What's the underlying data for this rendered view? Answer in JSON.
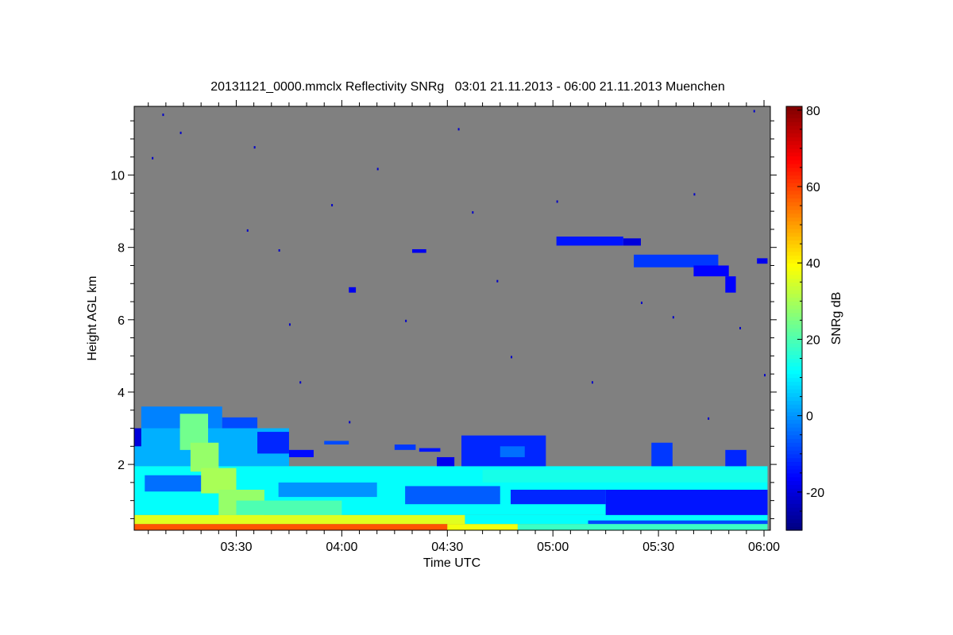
{
  "chart_data": {
    "type": "heatmap",
    "title": "20131121_0000.mmclx Reflectivity SNRg   03:01 21.11.2013 - 06:00 21.11.2013 Muenchen",
    "xlabel": "Time UTC",
    "ylabel": "Height AGL km",
    "colorbar_label": "SNRg dB",
    "x_units": "minutes after 03:00 UTC",
    "xlim": [
      1,
      181.8
    ],
    "x_ticks": [
      {
        "v": 30,
        "label": "03:30"
      },
      {
        "v": 60,
        "label": "04:00"
      },
      {
        "v": 90,
        "label": "04:30"
      },
      {
        "v": 120,
        "label": "05:00"
      },
      {
        "v": 150,
        "label": "05:30"
      },
      {
        "v": 180,
        "label": "06:00"
      }
    ],
    "x_minor_step": 5,
    "ylim": [
      0.18,
      11.9
    ],
    "y_ticks": [
      {
        "v": 2,
        "label": "2"
      },
      {
        "v": 4,
        "label": "4"
      },
      {
        "v": 6,
        "label": "6"
      },
      {
        "v": 8,
        "label": "8"
      },
      {
        "v": 10,
        "label": "10"
      }
    ],
    "y_minor_step": 0.5,
    "clim": [
      -30,
      81
    ],
    "colorbar_ticks": [
      {
        "v": 80,
        "label": "80"
      },
      {
        "v": 60,
        "label": "60"
      },
      {
        "v": 40,
        "label": "40"
      },
      {
        "v": 20,
        "label": "20"
      },
      {
        "v": 0,
        "label": "0"
      },
      {
        "v": -20,
        "label": "-20"
      }
    ],
    "colorbar_minor_step": 5,
    "colormap": "jet",
    "no_signal_color": "#808080",
    "regions": [
      {
        "t": [
          1,
          45
        ],
        "h": [
          1.95,
          3.0
        ],
        "snr": 3
      },
      {
        "t": [
          3,
          26
        ],
        "h": [
          3.0,
          3.6
        ],
        "snr": -2
      },
      {
        "t": [
          26,
          36
        ],
        "h": [
          3.0,
          3.3
        ],
        "snr": -8
      },
      {
        "t": [
          36,
          45
        ],
        "h": [
          2.3,
          2.9
        ],
        "snr": -12
      },
      {
        "t": [
          45,
          52
        ],
        "h": [
          2.2,
          2.4
        ],
        "snr": -15
      },
      {
        "t": [
          1,
          3
        ],
        "h": [
          2.5,
          3.0
        ],
        "snr": -20
      },
      {
        "t": [
          1,
          181
        ],
        "h": [
          0.6,
          1.95
        ],
        "snr": 12
      },
      {
        "t": [
          4,
          24
        ],
        "h": [
          1.25,
          1.7
        ],
        "snr": -4
      },
      {
        "t": [
          42,
          70
        ],
        "h": [
          1.1,
          1.5
        ],
        "snr": 0
      },
      {
        "t": [
          78,
          105
        ],
        "h": [
          0.9,
          1.4
        ],
        "snr": -6
      },
      {
        "t": [
          108,
          135
        ],
        "h": [
          0.9,
          1.3
        ],
        "snr": -12
      },
      {
        "t": [
          135,
          181
        ],
        "h": [
          0.5,
          1.3
        ],
        "snr": -14
      },
      {
        "t": [
          100,
          181
        ],
        "h": [
          1.5,
          1.85
        ],
        "snr": 14
      },
      {
        "t": [
          14,
          22
        ],
        "h": [
          2.4,
          3.4
        ],
        "snr": 24
      },
      {
        "t": [
          17,
          25
        ],
        "h": [
          1.8,
          2.6
        ],
        "snr": 28
      },
      {
        "t": [
          20,
          30
        ],
        "h": [
          1.2,
          1.9
        ],
        "snr": 30
      },
      {
        "t": [
          25,
          38
        ],
        "h": [
          0.6,
          1.3
        ],
        "snr": 28
      },
      {
        "t": [
          30,
          60
        ],
        "h": [
          0.6,
          1.0
        ],
        "snr": 20
      },
      {
        "t": [
          1,
          95
        ],
        "h": [
          0.35,
          0.6
        ],
        "snr": 36
      },
      {
        "t": [
          95,
          181
        ],
        "h": [
          0.35,
          0.6
        ],
        "snr": 12
      },
      {
        "t": [
          130,
          181
        ],
        "h": [
          0.35,
          0.45
        ],
        "snr": -8
      },
      {
        "t": [
          1,
          90
        ],
        "h": [
          0.18,
          0.35
        ],
        "snr": 58
      },
      {
        "t": [
          90,
          110
        ],
        "h": [
          0.18,
          0.35
        ],
        "snr": 38
      },
      {
        "t": [
          110,
          181
        ],
        "h": [
          0.18,
          0.35
        ],
        "snr": 18
      },
      {
        "t": [
          94,
          118
        ],
        "h": [
          1.95,
          2.8
        ],
        "snr": -12
      },
      {
        "t": [
          105,
          112
        ],
        "h": [
          2.2,
          2.5
        ],
        "snr": -4
      },
      {
        "t": [
          87,
          92
        ],
        "h": [
          1.95,
          2.2
        ],
        "snr": -18
      },
      {
        "t": [
          148,
          154
        ],
        "h": [
          1.95,
          2.6
        ],
        "snr": -10
      },
      {
        "t": [
          169,
          175
        ],
        "h": [
          1.95,
          2.4
        ],
        "snr": -12
      },
      {
        "t": [
          55,
          62
        ],
        "h": [
          2.55,
          2.65
        ],
        "snr": -8
      },
      {
        "t": [
          75,
          81
        ],
        "h": [
          2.4,
          2.55
        ],
        "snr": -10
      },
      {
        "t": [
          82,
          88
        ],
        "h": [
          2.35,
          2.45
        ],
        "snr": -14
      },
      {
        "t": [
          121,
          140
        ],
        "h": [
          8.05,
          8.3
        ],
        "snr": -14
      },
      {
        "t": [
          140,
          145
        ],
        "h": [
          8.05,
          8.25
        ],
        "snr": -20
      },
      {
        "t": [
          143,
          167
        ],
        "h": [
          7.45,
          7.8
        ],
        "snr": -10
      },
      {
        "t": [
          160,
          170
        ],
        "h": [
          7.2,
          7.5
        ],
        "snr": -16
      },
      {
        "t": [
          169,
          172
        ],
        "h": [
          6.75,
          7.2
        ],
        "snr": -16
      },
      {
        "t": [
          178,
          181
        ],
        "h": [
          7.55,
          7.7
        ],
        "snr": -18
      },
      {
        "t": [
          80,
          84
        ],
        "h": [
          7.85,
          7.95
        ],
        "snr": -18
      },
      {
        "t": [
          62,
          64
        ],
        "h": [
          6.75,
          6.9
        ],
        "snr": -18
      }
    ],
    "isolated_pixels": [
      {
        "t": 9,
        "h": 11.7
      },
      {
        "t": 14,
        "h": 11.2
      },
      {
        "t": 33,
        "h": 8.5
      },
      {
        "t": 35,
        "h": 10.8
      },
      {
        "t": 42,
        "h": 7.95
      },
      {
        "t": 45,
        "h": 5.9
      },
      {
        "t": 57,
        "h": 9.2
      },
      {
        "t": 62,
        "h": 3.2
      },
      {
        "t": 70,
        "h": 10.2
      },
      {
        "t": 78,
        "h": 6.0
      },
      {
        "t": 93,
        "h": 11.3
      },
      {
        "t": 97,
        "h": 9.0
      },
      {
        "t": 108,
        "h": 5.0
      },
      {
        "t": 121,
        "h": 9.3
      },
      {
        "t": 131,
        "h": 4.3
      },
      {
        "t": 145,
        "h": 6.5
      },
      {
        "t": 154,
        "h": 6.1
      },
      {
        "t": 160,
        "h": 9.5
      },
      {
        "t": 164,
        "h": 3.3
      },
      {
        "t": 173,
        "h": 5.8
      },
      {
        "t": 177,
        "h": 11.8
      },
      {
        "t": 6,
        "h": 10.5
      },
      {
        "t": 48,
        "h": 4.3
      },
      {
        "t": 104,
        "h": 7.1
      },
      {
        "t": 180,
        "h": 4.5
      }
    ]
  }
}
